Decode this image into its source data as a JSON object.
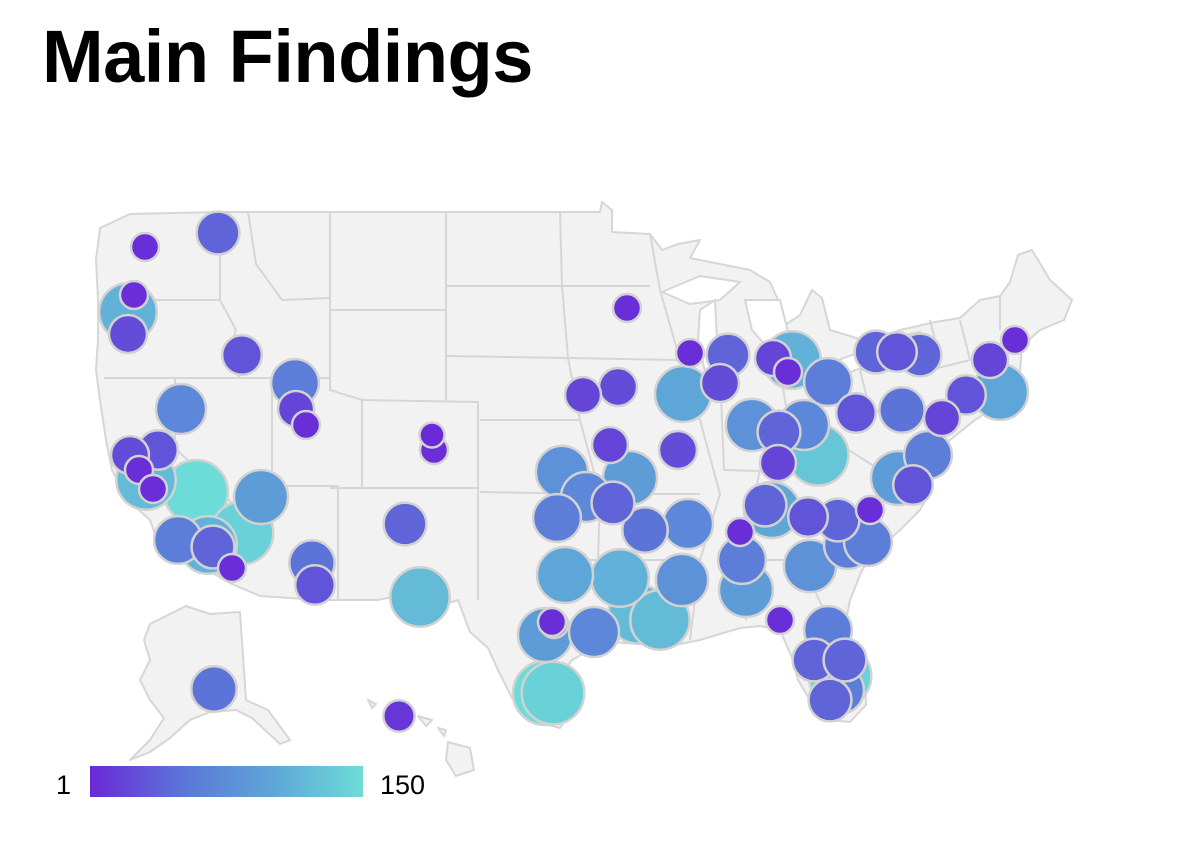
{
  "title": "Main Findings",
  "legend": {
    "min_label": "1",
    "max_label": "150",
    "colors": [
      "#6a28d8",
      "#5c74d8",
      "#5ea6d8",
      "#6cdcd8"
    ]
  },
  "colors": {
    "land": "#f2f2f2",
    "border": "#d6d6d6",
    "bubble_stroke": "#d2d2d2"
  },
  "markers": [
    {
      "loc": "Washington-Seattle",
      "v": 5
    },
    {
      "loc": "Oregon-Portland",
      "v": 110
    },
    {
      "loc": "Oregon-Portland-2",
      "v": 5
    },
    {
      "loc": "Oregon-Salem",
      "v": 25
    },
    {
      "loc": "Montana-North",
      "v": 40
    },
    {
      "loc": "Idaho-Boise",
      "v": 30
    },
    {
      "loc": "Utah-Salt Lake City",
      "v": 60
    },
    {
      "loc": "Utah-Provo",
      "v": 20
    },
    {
      "loc": "Utah-South",
      "v": 5
    },
    {
      "loc": "Nevada-Reno",
      "v": 70
    },
    {
      "loc": "California-Sacramento",
      "v": 25
    },
    {
      "loc": "California-Bay Area",
      "v": 120
    },
    {
      "loc": "California-San Francisco",
      "v": 30
    },
    {
      "loc": "California-San Jose",
      "v": 5
    },
    {
      "loc": "California-Monterey",
      "v": 5
    },
    {
      "loc": "California-Fresno",
      "v": 150
    },
    {
      "loc": "California-Bakersfield",
      "v": 140
    },
    {
      "loc": "California-Las Vegas",
      "v": 90
    },
    {
      "loc": "California-Los Angeles",
      "v": 60
    },
    {
      "loc": "California-Riverside",
      "v": 110
    },
    {
      "loc": "California-San Diego",
      "v": 40
    },
    {
      "loc": "California-Imperial",
      "v": 5
    },
    {
      "loc": "Arizona-Phoenix",
      "v": 50
    },
    {
      "loc": "Arizona-Tucson",
      "v": 30
    },
    {
      "loc": "Colorado-Denver",
      "v": 5
    },
    {
      "loc": "Colorado-Denver-2",
      "v": 2
    },
    {
      "loc": "New Mexico-Albuquerque",
      "v": 40
    },
    {
      "loc": "Texas-El Paso",
      "v": 120
    },
    {
      "loc": "Minnesota-Minneapolis",
      "v": 5
    },
    {
      "loc": "Iowa-Des Moines",
      "v": 20
    },
    {
      "loc": "Iowa-Cedar Rapids",
      "v": 25
    },
    {
      "loc": "Missouri-Kansas City",
      "v": 20
    },
    {
      "loc": "Missouri-St Louis",
      "v": 25
    },
    {
      "loc": "Kansas-Wichita",
      "v": 80
    },
    {
      "loc": "Oklahoma-Tulsa",
      "v": 90
    },
    {
      "loc": "Oklahoma-Oklahoma City",
      "v": 70
    },
    {
      "loc": "Arkansas-Fort Smith",
      "v": 40
    },
    {
      "loc": "Arkansas-Little Rock",
      "v": 50
    },
    {
      "loc": "Texas-Dallas",
      "v": 60
    },
    {
      "loc": "Texas-Fort Worth",
      "v": 110
    },
    {
      "loc": "Texas-Waco",
      "v": 100
    },
    {
      "loc": "Texas-Austin",
      "v": 90
    },
    {
      "loc": "Texas-San Antonio",
      "v": 5
    },
    {
      "loc": "Texas-Houston",
      "v": 140
    },
    {
      "loc": "Texas-Corpus Christi",
      "v": 150
    },
    {
      "loc": "Louisiana-Shreveport",
      "v": 120
    },
    {
      "loc": "Louisiana-Baton Rouge",
      "v": 70
    },
    {
      "loc": "Louisiana-New Orleans",
      "v": 120
    },
    {
      "loc": "Mississippi-Jackson",
      "v": 80
    },
    {
      "loc": "Tennessee-Memphis",
      "v": 70
    },
    {
      "loc": "Alabama-Birmingham",
      "v": 60
    },
    {
      "loc": "Alabama-Montgomery",
      "v": 90
    },
    {
      "loc": "Georgia-Atlanta",
      "v": 80
    },
    {
      "loc": "Georgia-Macon",
      "v": 5
    },
    {
      "loc": "Georgia-Savannah",
      "v": 60
    },
    {
      "loc": "Florida-Tallahassee",
      "v": 5
    },
    {
      "loc": "Florida-Jacksonville",
      "v": 60
    },
    {
      "loc": "Florida-Orlando",
      "v": 140
    },
    {
      "loc": "Florida-Tampa",
      "v": 40
    },
    {
      "loc": "Florida-Miami",
      "v": 40
    },
    {
      "loc": "Florida-Fort Lauderdale",
      "v": 60
    },
    {
      "loc": "Florida-Naples",
      "v": 40
    },
    {
      "loc": "Illinois-Chicago",
      "v": 100
    },
    {
      "loc": "Illinois-Peoria",
      "v": 25
    },
    {
      "loc": "Illinois-Springfield",
      "v": 5
    },
    {
      "loc": "Wisconsin-Milwaukee",
      "v": 5
    },
    {
      "loc": "Michigan-Detroit",
      "v": 110
    },
    {
      "loc": "Michigan-Grand Rapids",
      "v": 40
    },
    {
      "loc": "Michigan-Lansing",
      "v": 20
    },
    {
      "loc": "Indiana-Indianapolis",
      "v": 80
    },
    {
      "loc": "Indiana-Fort Wayne",
      "v": 60
    },
    {
      "loc": "Ohio-Columbus",
      "v": 70
    },
    {
      "loc": "Ohio-Cleveland",
      "v": 30
    },
    {
      "loc": "Ohio-Cincinnati",
      "v": 40
    },
    {
      "loc": "Kentucky-Louisville",
      "v": 20
    },
    {
      "loc": "Kentucky-Lexington",
      "v": 5
    },
    {
      "loc": "West Virginia-Charleston",
      "v": 130
    },
    {
      "loc": "Tennessee-Nashville",
      "v": 100
    },
    {
      "loc": "Tennessee-Knoxville",
      "v": 40
    },
    {
      "loc": "North Carolina-Charlotte",
      "v": 60
    },
    {
      "loc": "North Carolina-Raleigh",
      "v": 40
    },
    {
      "loc": "Virginia-Richmond",
      "v": 30
    },
    {
      "loc": "Virginia-Norfolk",
      "v": 5
    },
    {
      "loc": "Pennsylvania-Pittsburgh",
      "v": 50
    },
    {
      "loc": "Pennsylvania-Harrisburg",
      "v": 60
    },
    {
      "loc": "Pennsylvania-Philadelphia",
      "v": 30
    },
    {
      "loc": "New York-Buffalo",
      "v": 40
    },
    {
      "loc": "New York-Rochester",
      "v": 30
    },
    {
      "loc": "New York-Syracuse",
      "v": 40
    },
    {
      "loc": "New York-New York City",
      "v": 100
    },
    {
      "loc": "New Jersey-Newark",
      "v": 20
    },
    {
      "loc": "Maryland-Baltimore",
      "v": 90
    },
    {
      "loc": "Connecticut-Hartford",
      "v": 30
    },
    {
      "loc": "Massachusetts-Boston",
      "v": 20
    },
    {
      "loc": "Maine-Portland",
      "v": 5
    },
    {
      "loc": "Alaska-Anchorage",
      "v": 50
    },
    {
      "loc": "Hawaii-Honolulu",
      "v": 10
    }
  ]
}
